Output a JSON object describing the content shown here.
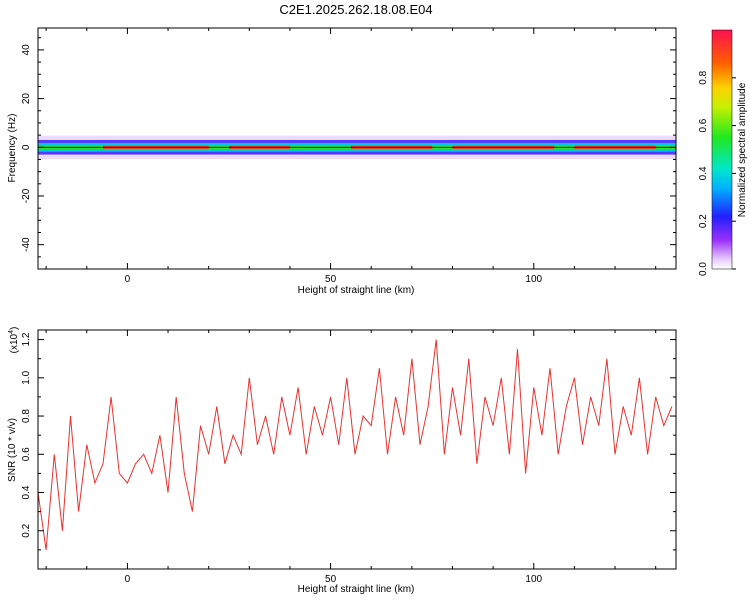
{
  "title": "C2E1.2025.262.18.08.E04",
  "chart_data": [
    {
      "type": "heatmap",
      "xlabel": "Height of straight line (km)",
      "ylabel": "Frequency (Hz)",
      "xlim": [
        -22,
        135
      ],
      "ylim": [
        -50,
        49
      ],
      "xticks": [
        "0",
        "50",
        "100"
      ],
      "xtick_values": [
        0,
        50,
        100
      ],
      "yticks": [
        "40",
        "20",
        "0",
        "-20",
        "-40"
      ],
      "ytick_values": [
        40,
        20,
        0,
        -20,
        -40
      ],
      "colorbar": {
        "label": "Normalized spectral amplitude",
        "ticks": [
          "0.0",
          "0.2",
          "0.4",
          "0.6",
          "0.8"
        ],
        "tick_values": [
          0.0,
          0.2,
          0.4,
          0.6,
          0.8
        ],
        "range": [
          0,
          1
        ]
      },
      "band": {
        "center_hz": 0,
        "halfwidth_hz": 3
      },
      "peak_segments_km": [
        [
          -6,
          20
        ],
        [
          25,
          40
        ],
        [
          55,
          75
        ],
        [
          80,
          105
        ],
        [
          110,
          130
        ]
      ],
      "grid": false
    },
    {
      "type": "line",
      "xlabel": "Height of straight line (km)",
      "ylabel": "SNR (10 * v/v)",
      "scale_label": "(x10",
      "scale_exponent": "4",
      "xlim": [
        -22,
        135
      ],
      "ylim": [
        0.0,
        1.25
      ],
      "xticks": [
        "0",
        "50",
        "100"
      ],
      "xtick_values": [
        0,
        50,
        100
      ],
      "yticks": [
        "0.2",
        "0.4",
        "0.6",
        "0.8",
        "1.0",
        "1.2"
      ],
      "ytick_values": [
        0.2,
        0.4,
        0.6,
        0.8,
        1.0,
        1.2
      ],
      "color": "#e8322f",
      "series": [
        {
          "x": [
            -22,
            -20,
            -18,
            -16,
            -14,
            -12,
            -10,
            -8,
            -6,
            -4,
            -2,
            0,
            2,
            4,
            6,
            8,
            10,
            12,
            14,
            16,
            18,
            20,
            22,
            24,
            26,
            28,
            30,
            32,
            34,
            36,
            38,
            40,
            42,
            44,
            46,
            48,
            50,
            52,
            54,
            56,
            58,
            60,
            62,
            64,
            66,
            68,
            70,
            72,
            74,
            76,
            78,
            80,
            82,
            84,
            86,
            88,
            90,
            92,
            94,
            96,
            98,
            100,
            102,
            104,
            106,
            108,
            110,
            112,
            114,
            116,
            118,
            120,
            122,
            124,
            126,
            128,
            130,
            132,
            134
          ],
          "values": [
            0.4,
            0.1,
            0.6,
            0.2,
            0.8,
            0.3,
            0.65,
            0.45,
            0.55,
            0.9,
            0.5,
            0.45,
            0.55,
            0.6,
            0.5,
            0.7,
            0.4,
            0.9,
            0.5,
            0.3,
            0.75,
            0.6,
            0.85,
            0.55,
            0.7,
            0.6,
            1.0,
            0.65,
            0.8,
            0.6,
            0.9,
            0.7,
            0.95,
            0.6,
            0.85,
            0.7,
            0.9,
            0.65,
            1.0,
            0.6,
            0.8,
            0.75,
            1.05,
            0.6,
            0.9,
            0.7,
            1.1,
            0.65,
            0.85,
            1.2,
            0.6,
            0.95,
            0.7,
            1.1,
            0.55,
            0.9,
            0.75,
            1.0,
            0.6,
            1.15,
            0.5,
            0.95,
            0.7,
            1.05,
            0.6,
            0.85,
            1.0,
            0.65,
            0.9,
            0.75,
            1.1,
            0.6,
            0.85,
            0.7,
            1.0,
            0.6,
            0.9,
            0.75,
            0.85
          ]
        }
      ],
      "grid": false
    }
  ]
}
